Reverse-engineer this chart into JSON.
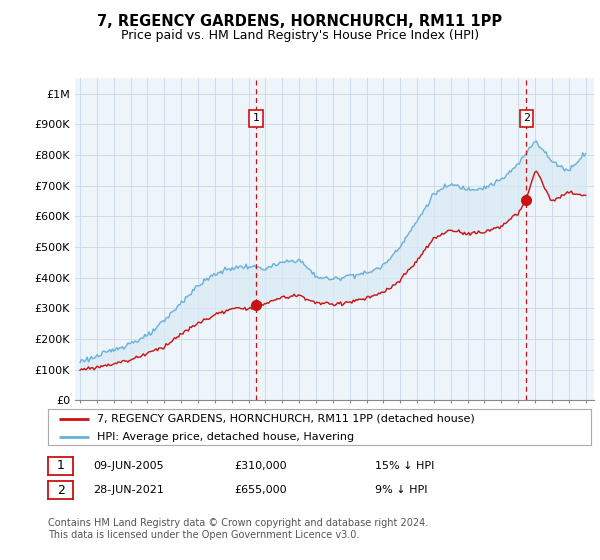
{
  "title": "7, REGENCY GARDENS, HORNCHURCH, RM11 1PP",
  "subtitle": "Price paid vs. HM Land Registry's House Price Index (HPI)",
  "ylim": [
    0,
    1050000
  ],
  "yticks": [
    0,
    100000,
    200000,
    300000,
    400000,
    500000,
    600000,
    700000,
    800000,
    900000,
    1000000
  ],
  "ytick_labels": [
    "£0",
    "£100K",
    "£200K",
    "£300K",
    "£400K",
    "£500K",
    "£600K",
    "£700K",
    "£800K",
    "£900K",
    "£1M"
  ],
  "sale1_date": 2005.44,
  "sale1_price": 310000,
  "sale1_label": "1",
  "sale2_date": 2021.49,
  "sale2_price": 655000,
  "sale2_label": "2",
  "hpi_color": "#6ab0d8",
  "price_color": "#cc1111",
  "fill_color": "#d8eaf5",
  "vline_color": "#cc1111",
  "grid_color": "#c8d8e8",
  "background_color": "#ffffff",
  "chart_bg": "#edf4fa",
  "legend_label_price": "7, REGENCY GARDENS, HORNCHURCH, RM11 1PP (detached house)",
  "legend_label_hpi": "HPI: Average price, detached house, Havering",
  "annotation1_text": "09-JUN-2005",
  "annotation1_price": "£310,000",
  "annotation1_rel": "15% ↓ HPI",
  "annotation2_text": "28-JUN-2021",
  "annotation2_price": "£655,000",
  "annotation2_rel": "9% ↓ HPI",
  "footer": "Contains HM Land Registry data © Crown copyright and database right 2024.\nThis data is licensed under the Open Government Licence v3.0.",
  "title_fontsize": 10.5,
  "subtitle_fontsize": 9,
  "tick_fontsize": 8,
  "legend_fontsize": 8,
  "annotation_fontsize": 8,
  "footer_fontsize": 7
}
